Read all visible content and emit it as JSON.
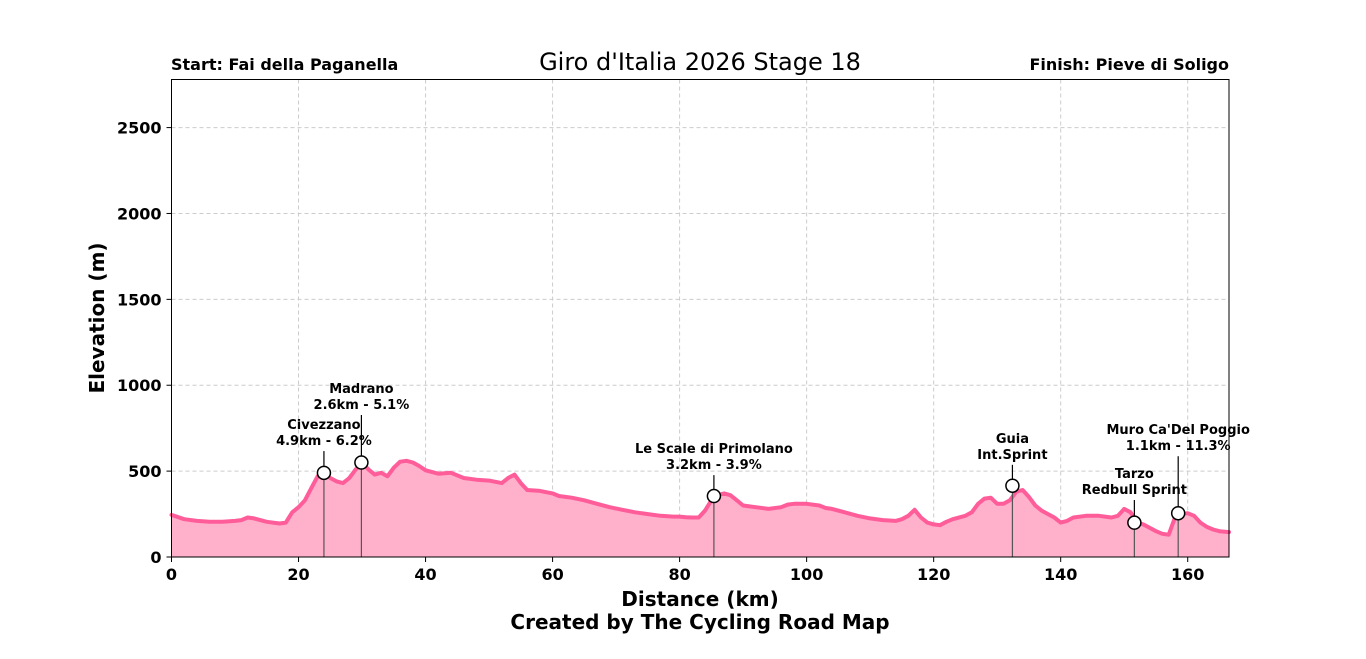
{
  "chart_data": {
    "type": "area",
    "title": "Giro d'Italia 2026 Stage 18",
    "start_label": "Start: Fai della Paganella",
    "finish_label": "Finish: Pieve di Soligo",
    "xlabel": "Distance (km)",
    "ylabel": "Elevation (m)",
    "credit": "Created by The Cycling Road Map",
    "xlim": [
      0,
      166.5
    ],
    "ylim": [
      0,
      2780
    ],
    "xticks": [
      0,
      20,
      40,
      60,
      80,
      100,
      120,
      140,
      160
    ],
    "yticks": [
      0,
      500,
      1000,
      1500,
      2000,
      2500
    ],
    "grid": true,
    "colors": {
      "line": "#ff5c9a",
      "fill": "#ffb0ca",
      "grid": "#cccccc",
      "marker_stem": "#555555"
    },
    "profile": {
      "x": [
        0,
        2,
        4,
        6,
        8,
        10,
        11,
        12,
        13,
        15,
        17,
        18,
        19,
        20,
        21,
        22,
        23,
        24,
        25,
        26,
        27,
        28,
        29,
        30,
        31,
        32,
        33,
        34,
        35,
        36,
        37,
        38,
        39,
        40,
        42,
        44,
        46,
        48,
        50,
        52,
        53,
        54,
        55,
        56,
        58,
        60,
        61,
        63,
        65,
        67,
        69,
        71,
        73,
        75,
        77,
        79,
        80,
        81,
        82,
        83,
        84,
        85,
        86,
        87,
        88,
        89,
        90,
        92,
        94,
        96,
        97,
        98,
        100,
        102,
        103,
        104,
        106,
        108,
        110,
        112,
        114,
        115,
        116,
        117,
        118,
        119,
        120,
        121,
        122,
        123,
        125,
        126,
        127,
        128,
        129,
        130,
        131,
        132,
        133,
        134,
        135,
        136,
        137,
        138,
        139,
        140,
        141,
        142,
        144,
        146,
        148,
        149,
        150,
        151,
        152,
        153,
        154,
        155,
        156,
        157,
        158,
        159,
        160,
        161,
        162,
        163,
        164,
        165,
        166.5
      ],
      "y": [
        245,
        220,
        210,
        205,
        205,
        210,
        215,
        230,
        225,
        205,
        195,
        200,
        260,
        290,
        330,
        400,
        470,
        490,
        460,
        440,
        430,
        460,
        510,
        550,
        510,
        480,
        490,
        470,
        520,
        555,
        560,
        550,
        530,
        505,
        485,
        490,
        460,
        450,
        445,
        430,
        460,
        480,
        430,
        390,
        385,
        370,
        355,
        345,
        330,
        310,
        290,
        275,
        260,
        250,
        240,
        235,
        235,
        232,
        230,
        230,
        270,
        330,
        360,
        370,
        360,
        330,
        300,
        290,
        280,
        290,
        305,
        310,
        310,
        300,
        285,
        280,
        260,
        240,
        225,
        215,
        210,
        220,
        240,
        275,
        230,
        200,
        190,
        185,
        205,
        220,
        240,
        260,
        310,
        340,
        345,
        310,
        310,
        330,
        380,
        390,
        350,
        300,
        270,
        250,
        230,
        200,
        210,
        230,
        240,
        240,
        230,
        240,
        280,
        260,
        200,
        190,
        170,
        150,
        135,
        130,
        230,
        250,
        255,
        240,
        200,
        175,
        160,
        150,
        145
      ]
    },
    "annotations": [
      {
        "x": 24.0,
        "y": 490,
        "lines": [
          "Civezzano",
          "4.9km - 6.2%"
        ],
        "label_y": 640
      },
      {
        "x": 29.9,
        "y": 550,
        "lines": [
          "Madrano",
          "2.6km - 5.1%"
        ],
        "label_y": 850
      },
      {
        "x": 85.4,
        "y": 355,
        "lines": [
          "Le Scale di Primolano",
          "3.2km - 3.9%"
        ],
        "label_y": 500
      },
      {
        "x": 132.4,
        "y": 415,
        "lines": [
          "Guia",
          "Int.Sprint"
        ],
        "label_y": 560
      },
      {
        "x": 151.6,
        "y": 200,
        "lines": [
          "Tarzo",
          "Redbull Sprint"
        ],
        "label_y": 355
      },
      {
        "x": 158.5,
        "y": 255,
        "lines": [
          "Muro Ca'Del Poggio",
          "1.1km - 11.3%"
        ],
        "label_y": 610
      }
    ]
  }
}
